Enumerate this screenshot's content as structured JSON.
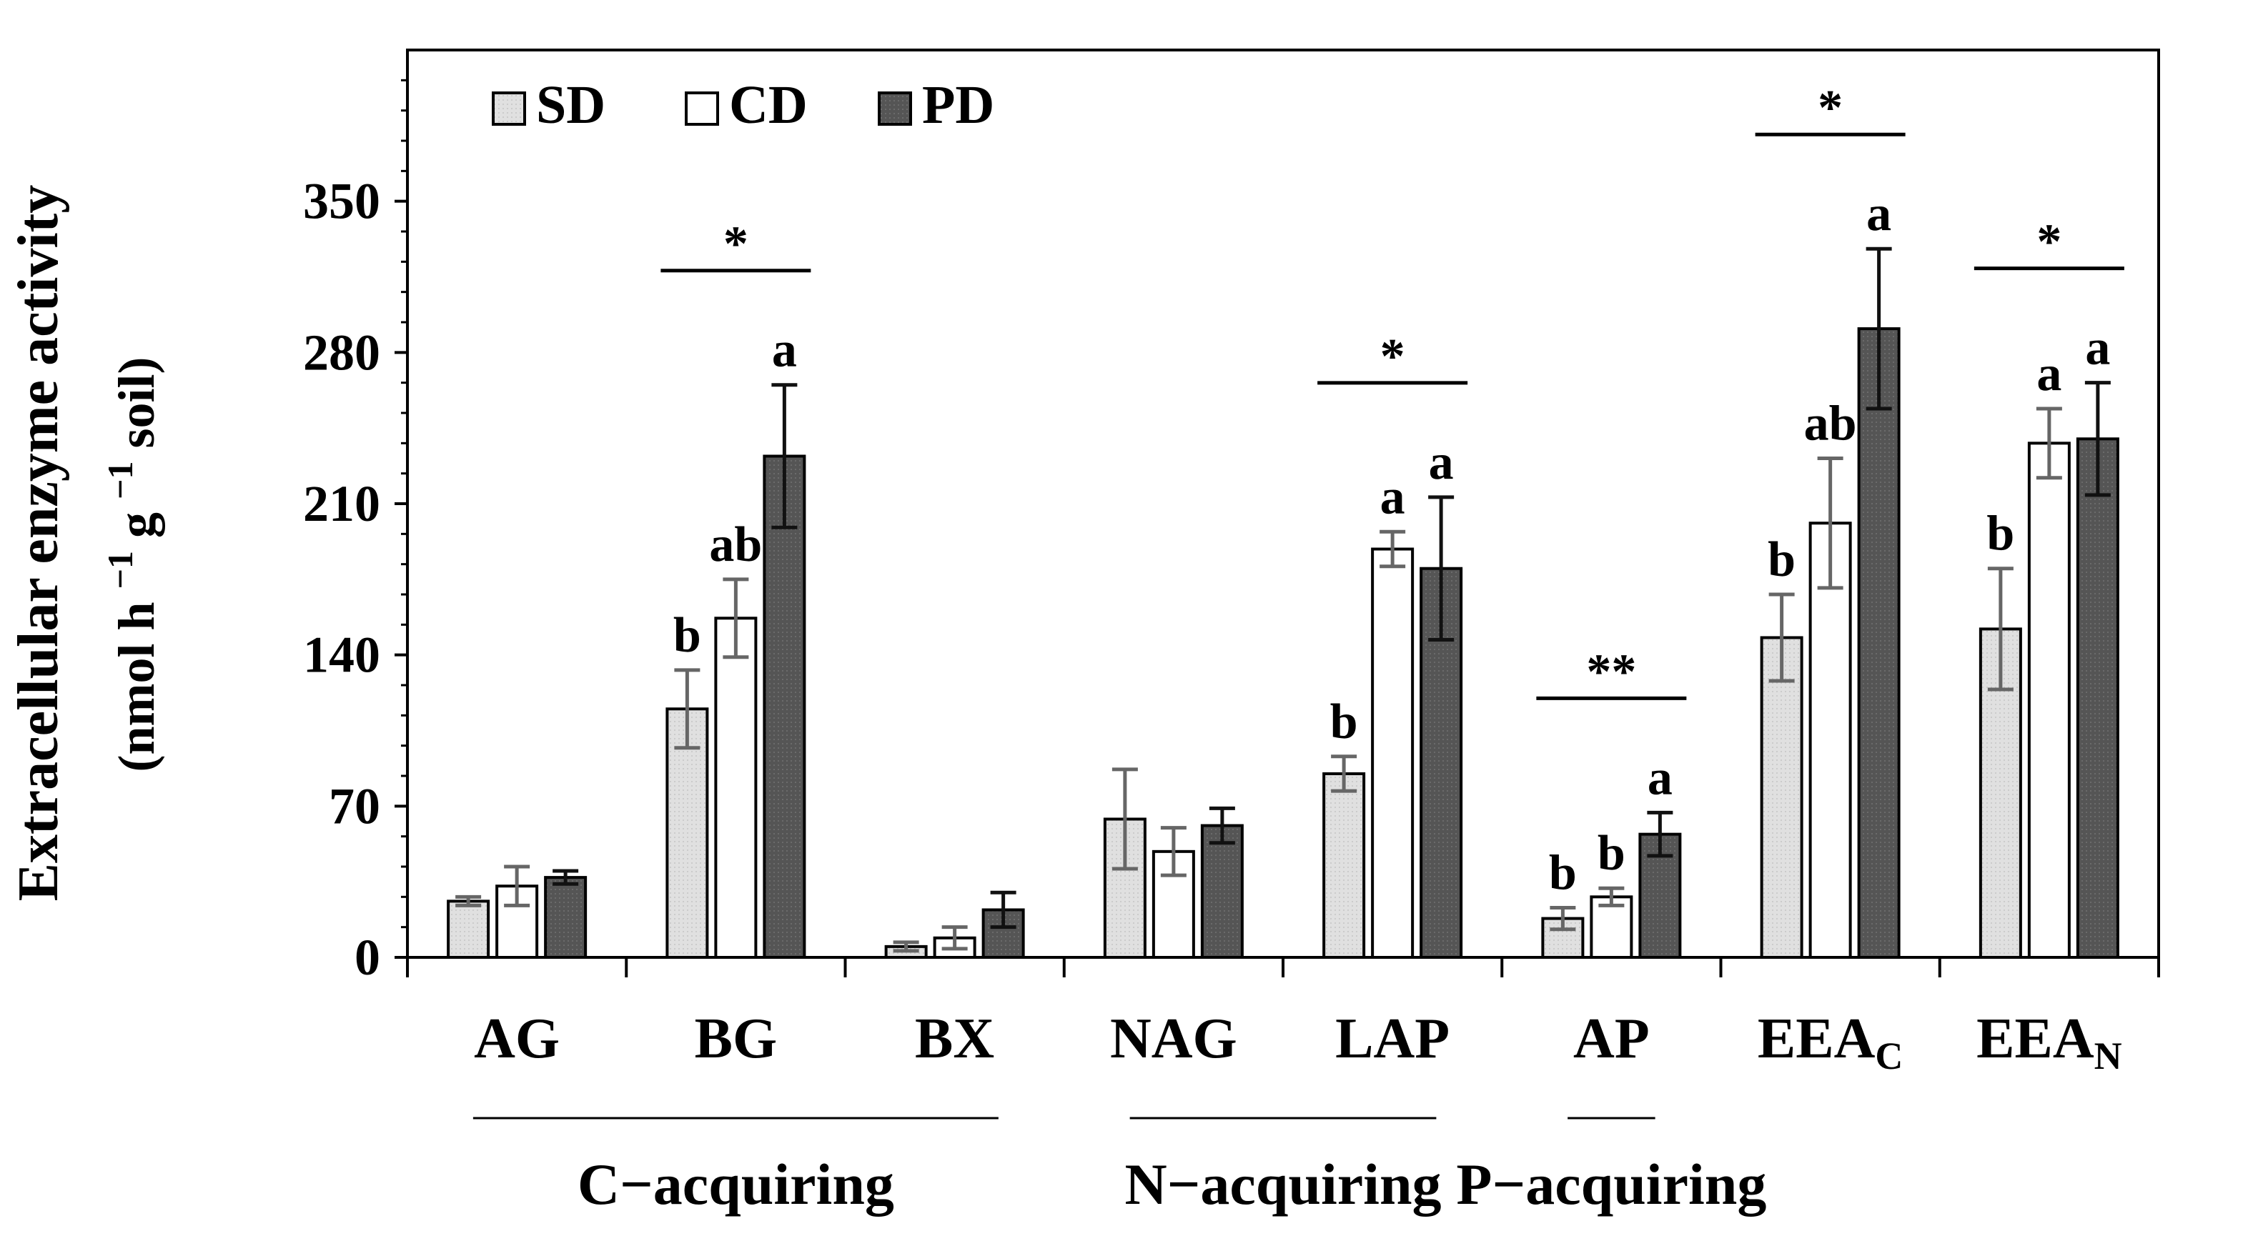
{
  "chart_data": {
    "type": "bar",
    "ylabel_line1": "Extracellular enzyme activity",
    "ylabel_line2": {
      "open": "(nmol h",
      "sup1": "−1",
      "mid": " g",
      "sup2": "−1",
      "end": "soil)"
    },
    "ylim": [
      0,
      420
    ],
    "yticks": [
      0,
      70,
      140,
      210,
      280,
      350
    ],
    "categories": [
      {
        "base": "AG",
        "sub": ""
      },
      {
        "base": "BG",
        "sub": ""
      },
      {
        "base": "BX",
        "sub": ""
      },
      {
        "base": "NAG",
        "sub": ""
      },
      {
        "base": "LAP",
        "sub": ""
      },
      {
        "base": "AP",
        "sub": ""
      },
      {
        "base": "EEA",
        "sub": "C"
      },
      {
        "base": "EEA",
        "sub": "N"
      }
    ],
    "series": [
      {
        "name": "SD",
        "color": "#e0e0e0",
        "values": [
          26,
          115,
          5,
          64,
          85,
          18,
          148,
          152
        ],
        "errors": [
          2,
          18,
          2,
          23,
          8,
          5,
          20,
          28
        ]
      },
      {
        "name": "CD",
        "color": "#ffffff",
        "values": [
          33,
          157,
          9,
          49,
          189,
          28,
          201,
          238
        ],
        "errors": [
          9,
          18,
          5,
          11,
          8,
          4,
          30,
          16
        ]
      },
      {
        "name": "PD",
        "color": "#555555",
        "values": [
          37,
          232,
          22,
          61,
          180,
          57,
          291,
          240
        ],
        "errors": [
          3,
          33,
          8,
          8,
          33,
          10,
          37,
          26
        ]
      }
    ],
    "letters": [
      [
        "",
        "",
        ""
      ],
      [
        "b",
        "ab",
        "a"
      ],
      [
        "",
        "",
        ""
      ],
      [
        "",
        "",
        ""
      ],
      [
        "b",
        "a",
        "a"
      ],
      [
        "b",
        "b",
        "a"
      ],
      [
        "b",
        "ab",
        "a"
      ],
      [
        "b",
        "a",
        "a"
      ]
    ],
    "significance": [
      "",
      "*",
      "",
      "",
      "*",
      "**",
      "*",
      "*"
    ],
    "groups": [
      {
        "label": "C−acquiring",
        "from": 0,
        "to": 2
      },
      {
        "label": "N−acquiring",
        "from": 3,
        "to": 4
      },
      {
        "label": "P−acquiring",
        "from": 5,
        "to": 5
      }
    ]
  }
}
